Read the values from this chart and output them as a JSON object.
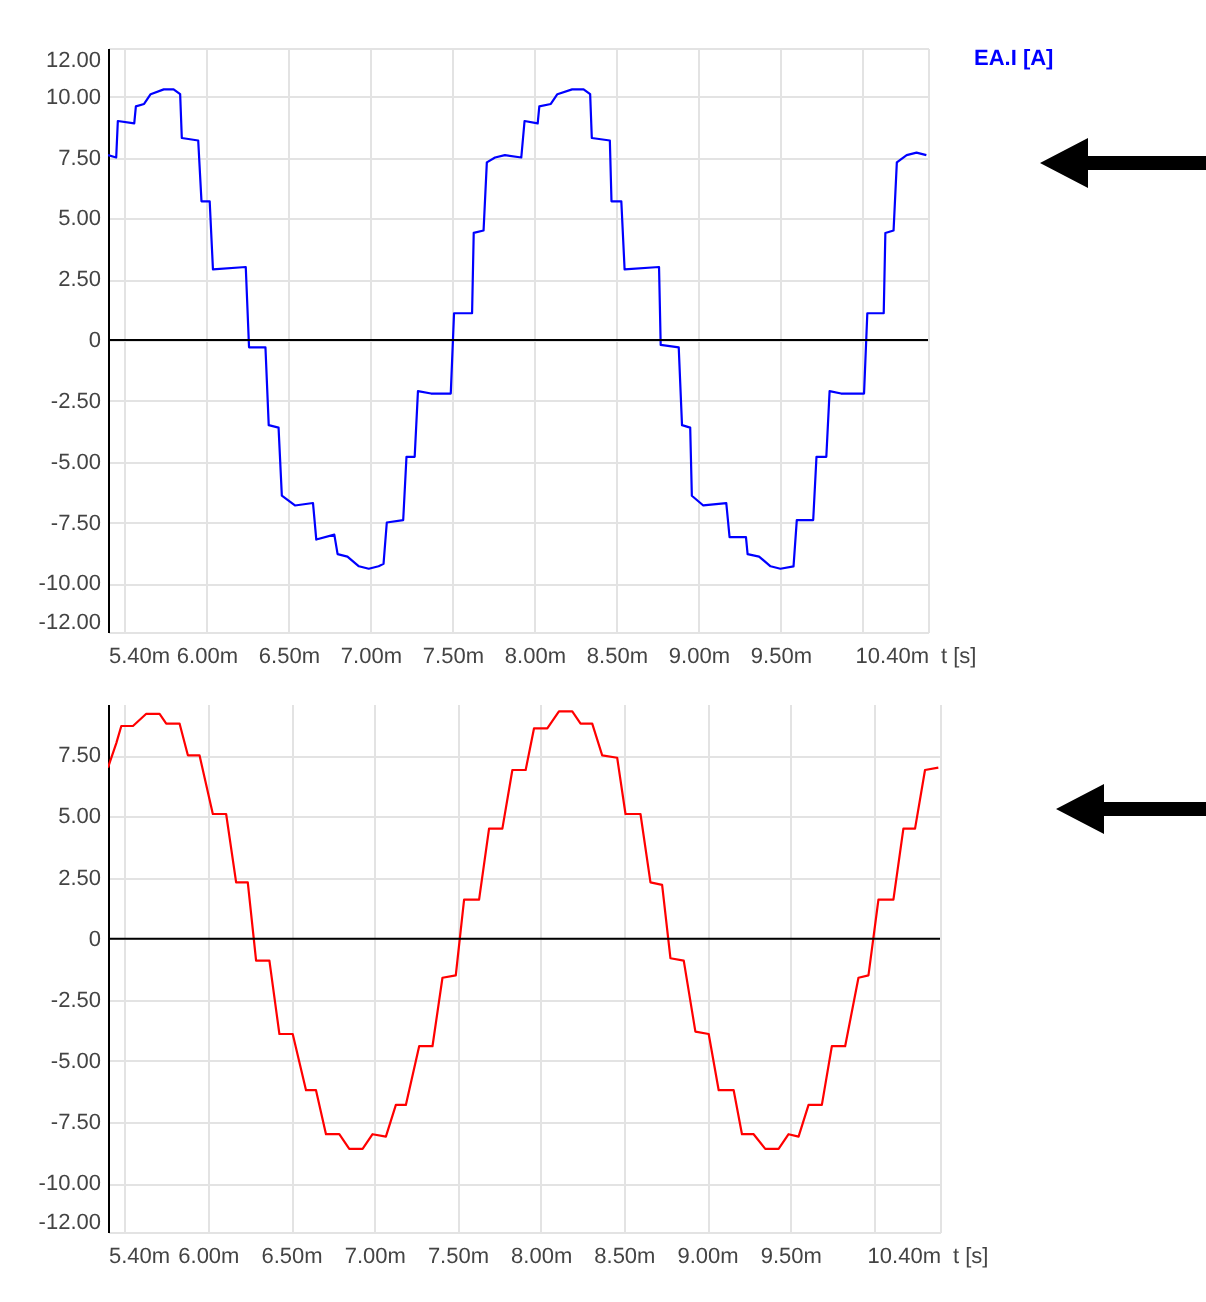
{
  "chart_data": [
    {
      "type": "line",
      "xlabel": "t [s]",
      "xlim": [
        5.4,
        10.4
      ],
      "xticks": [
        {
          "value": 5.4,
          "label": "5.40m"
        },
        {
          "value": 5.5,
          "label": null
        },
        {
          "value": 6.0,
          "label": "6.00m"
        },
        {
          "value": 6.5,
          "label": "6.50m"
        },
        {
          "value": 7.0,
          "label": "7.00m"
        },
        {
          "value": 7.5,
          "label": "7.50m"
        },
        {
          "value": 8.0,
          "label": "8.00m"
        },
        {
          "value": 8.5,
          "label": "8.50m"
        },
        {
          "value": 9.0,
          "label": "9.00m"
        },
        {
          "value": 9.5,
          "label": "9.50m"
        },
        {
          "value": 10.0,
          "label": null
        },
        {
          "value": 10.4,
          "label": "10.40m"
        }
      ],
      "ylim": [
        -12,
        12
      ],
      "yticks": [
        {
          "value": -12,
          "label": "-12.00"
        },
        {
          "value": -10,
          "label": "-10.00"
        },
        {
          "value": -7.5,
          "label": "-7.50"
        },
        {
          "value": -5,
          "label": "-5.00"
        },
        {
          "value": -2.5,
          "label": "-2.50"
        },
        0,
        {
          "value": 2.5,
          "label": "2.50"
        },
        {
          "value": 5,
          "label": "5.00"
        },
        {
          "value": 7.5,
          "label": "7.50"
        },
        {
          "value": 10,
          "label": "10.00"
        },
        {
          "value": 12,
          "label": "12.00"
        }
      ],
      "grid": true,
      "legend": "top right",
      "ref_lines": [
        {
          "axis": "y",
          "value": 0,
          "color": "#000000"
        }
      ],
      "series": [
        {
          "name": "EA.I [A]",
          "color": "#0000ff",
          "x": [
            5.4,
            5.45,
            5.46,
            5.56,
            5.57,
            5.62,
            5.66,
            5.74,
            5.8,
            5.84,
            5.85,
            5.95,
            5.97,
            6.02,
            6.04,
            6.24,
            6.26,
            6.36,
            6.38,
            6.44,
            6.46,
            6.54,
            6.65,
            6.67,
            6.78,
            6.8,
            6.86,
            6.93,
            6.99,
            7.05,
            7.08,
            7.1,
            7.2,
            7.22,
            7.27,
            7.29,
            7.37,
            7.49,
            7.51,
            7.62,
            7.63,
            7.69,
            7.71,
            7.76,
            7.82,
            7.92,
            7.94,
            8.02,
            8.03,
            8.1,
            8.14,
            8.23,
            8.3,
            8.34,
            8.35,
            8.46,
            8.47,
            8.53,
            8.55,
            8.76,
            8.77,
            8.88,
            8.9,
            8.95,
            8.96,
            9.03,
            9.17,
            9.19,
            9.29,
            9.3,
            9.37,
            9.44,
            9.5,
            9.58,
            9.6,
            9.7,
            9.72,
            9.78,
            9.8,
            9.87,
            10.01,
            10.03,
            10.13,
            10.14,
            10.19,
            10.21,
            10.27,
            10.33,
            10.39
          ],
          "values": [
            7.6,
            7.5,
            9.0,
            8.9,
            9.6,
            9.7,
            10.1,
            10.3,
            10.3,
            10.1,
            8.3,
            8.2,
            5.7,
            5.7,
            2.9,
            3.0,
            -0.3,
            -0.3,
            -3.5,
            -3.6,
            -6.4,
            -6.8,
            -6.7,
            -8.2,
            -8.0,
            -8.8,
            -8.9,
            -9.3,
            -9.4,
            -9.3,
            -9.2,
            -7.5,
            -7.4,
            -4.8,
            -4.8,
            -2.1,
            -2.2,
            -2.2,
            1.1,
            1.1,
            4.4,
            4.5,
            7.3,
            7.5,
            7.6,
            7.5,
            9.0,
            8.9,
            9.6,
            9.7,
            10.1,
            10.3,
            10.3,
            10.1,
            8.3,
            8.2,
            5.7,
            5.7,
            2.9,
            3.0,
            -0.2,
            -0.3,
            -3.5,
            -3.6,
            -6.4,
            -6.8,
            -6.7,
            -8.1,
            -8.1,
            -8.8,
            -8.9,
            -9.3,
            -9.4,
            -9.3,
            -7.4,
            -7.4,
            -4.8,
            -4.8,
            -2.1,
            -2.2,
            -2.2,
            1.1,
            1.1,
            4.4,
            4.5,
            7.3,
            7.6,
            7.7,
            7.6
          ]
        }
      ]
    },
    {
      "type": "line",
      "xlabel": "t [s]",
      "xlim": [
        5.4,
        10.4
      ],
      "xticks": [
        {
          "value": 5.4,
          "label": "5.40m"
        },
        {
          "value": 5.5,
          "label": null
        },
        {
          "value": 6.0,
          "label": "6.00m"
        },
        {
          "value": 6.5,
          "label": "6.50m"
        },
        {
          "value": 7.0,
          "label": "7.00m"
        },
        {
          "value": 7.5,
          "label": "7.50m"
        },
        {
          "value": 8.0,
          "label": "8.00m"
        },
        {
          "value": 8.5,
          "label": "8.50m"
        },
        {
          "value": 9.0,
          "label": "9.00m"
        },
        {
          "value": 9.5,
          "label": "9.50m"
        },
        {
          "value": 10.0,
          "label": null
        },
        {
          "value": 10.4,
          "label": "10.40m"
        }
      ],
      "ylim": [
        -12,
        9.6
      ],
      "yticks": [
        {
          "value": -12,
          "label": "-12.00"
        },
        {
          "value": -10,
          "label": "-10.00"
        },
        {
          "value": -7.5,
          "label": "-7.50"
        },
        {
          "value": -5,
          "label": "-5.00"
        },
        {
          "value": -2.5,
          "label": "-2.50"
        },
        0,
        {
          "value": 2.5,
          "label": "2.50"
        },
        {
          "value": 5,
          "label": "5.00"
        },
        {
          "value": 7.5,
          "label": "7.50"
        }
      ],
      "grid": true,
      "ref_lines": [
        {
          "axis": "y",
          "value": 0,
          "color": "#000000"
        }
      ],
      "series": [
        {
          "color": "#ff0000",
          "x": [
            5.4,
            5.45,
            5.48,
            5.55,
            5.63,
            5.71,
            5.75,
            5.83,
            5.88,
            5.95,
            6.03,
            6.11,
            6.17,
            6.24,
            6.29,
            6.37,
            6.43,
            6.51,
            6.59,
            6.65,
            6.71,
            6.79,
            6.85,
            6.93,
            6.99,
            7.07,
            7.13,
            7.19,
            7.27,
            7.35,
            7.41,
            7.49,
            7.54,
            7.63,
            7.69,
            7.77,
            7.83,
            7.91,
            7.96,
            8.04,
            8.11,
            8.19,
            8.24,
            8.31,
            8.37,
            8.46,
            8.51,
            8.6,
            8.66,
            8.73,
            8.78,
            8.86,
            8.93,
            9.01,
            9.07,
            9.16,
            9.21,
            9.28,
            9.35,
            9.43,
            9.49,
            9.55,
            9.61,
            9.69,
            9.75,
            9.83,
            9.91,
            9.97,
            10.03,
            10.12,
            10.18,
            10.25,
            10.31,
            10.39
          ],
          "values": [
            7.0,
            8.0,
            8.7,
            8.7,
            9.2,
            9.2,
            8.8,
            8.8,
            7.5,
            7.5,
            5.1,
            5.1,
            2.3,
            2.3,
            -0.9,
            -0.9,
            -3.9,
            -3.9,
            -6.2,
            -6.2,
            -8.0,
            -8.0,
            -8.6,
            -8.6,
            -8.0,
            -8.1,
            -6.8,
            -6.8,
            -4.4,
            -4.4,
            -1.6,
            -1.5,
            1.6,
            1.6,
            4.5,
            4.5,
            6.9,
            6.9,
            8.6,
            8.6,
            9.3,
            9.3,
            8.8,
            8.8,
            7.5,
            7.4,
            5.1,
            5.1,
            2.3,
            2.2,
            -0.8,
            -0.9,
            -3.8,
            -3.9,
            -6.2,
            -6.2,
            -8.0,
            -8.0,
            -8.6,
            -8.6,
            -8.0,
            -8.1,
            -6.8,
            -6.8,
            -4.4,
            -4.4,
            -1.6,
            -1.5,
            1.6,
            1.6,
            4.5,
            4.5,
            6.9,
            7.0
          ]
        }
      ]
    }
  ]
}
